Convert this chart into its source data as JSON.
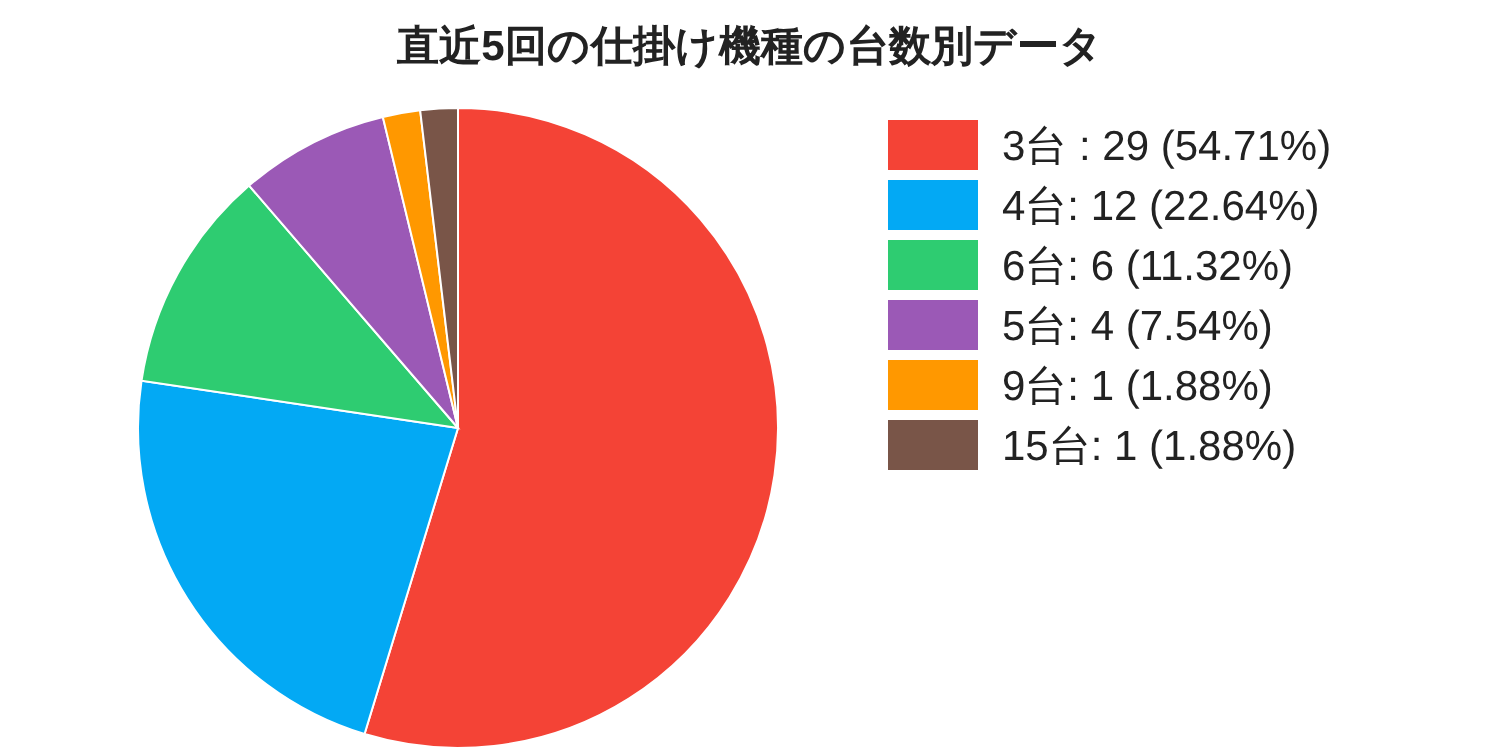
{
  "chart_data": {
    "type": "pie",
    "title": "直近5回の仕掛け機種の台数別データ",
    "categories": [
      "3台 : 29 (54.71%)",
      "4台: 12 (22.64%)",
      "6台: 6 (11.32%)",
      "5台: 4 (7.54%)",
      "9台: 1 (1.88%)",
      "15台: 1 (1.88%)"
    ],
    "values": [
      29,
      12,
      6,
      4,
      1,
      1
    ],
    "colors": [
      "#f44336",
      "#03a9f4",
      "#2ecc71",
      "#9b59b6",
      "#ff9800",
      "#795548"
    ],
    "legend": "right"
  }
}
